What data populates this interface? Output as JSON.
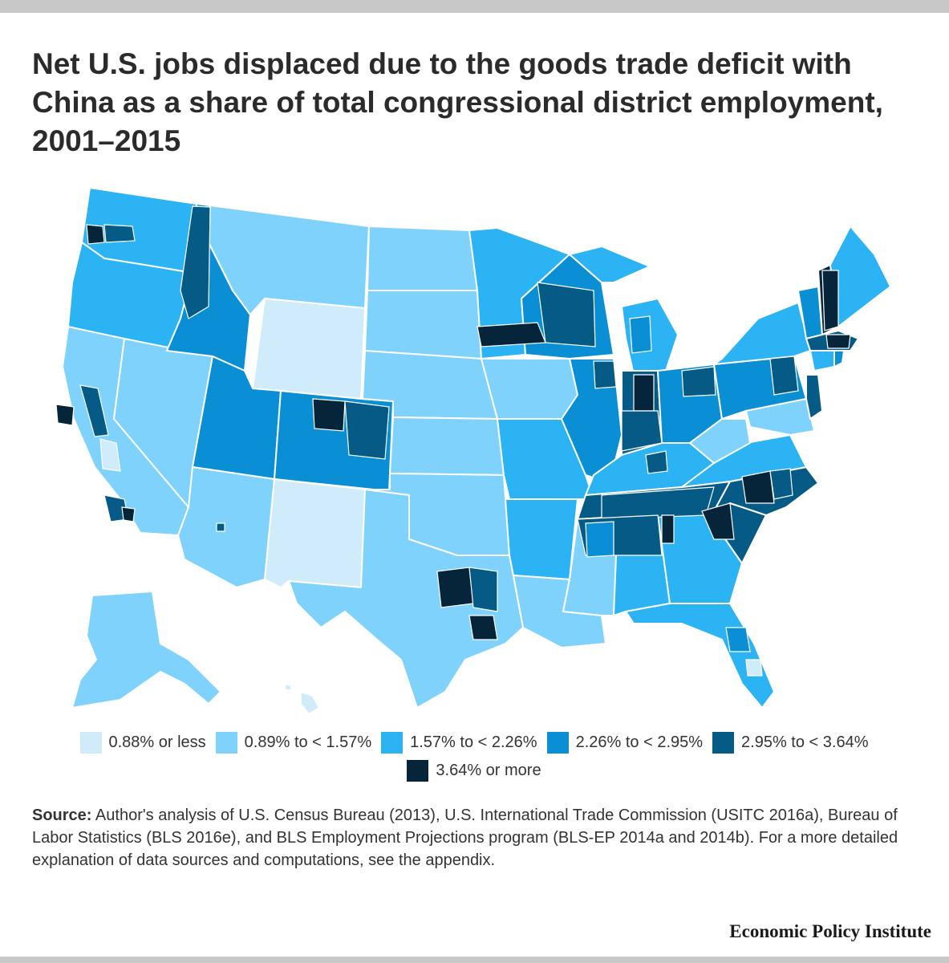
{
  "header": {
    "title": "Net U.S. jobs displaced due to the goods trade deficit with China as a share of total congressional district employment, 2001–2015"
  },
  "legend": {
    "items": [
      {
        "label": "0.88% or less",
        "color": "#d0ecfa"
      },
      {
        "label": "0.89% to < 1.57%",
        "color": "#7fd2fb"
      },
      {
        "label": "1.57% to < 2.26%",
        "color": "#2bb3f3"
      },
      {
        "label": "2.26% to < 2.95%",
        "color": "#0b8fd4"
      },
      {
        "label": "2.95% to < 3.64%",
        "color": "#065a86"
      },
      {
        "label": "3.64% or more",
        "color": "#06243a"
      }
    ]
  },
  "source": {
    "label": "Source:",
    "text": " Author's analysis of U.S. Census Bureau (2013), U.S. International Trade Commission (USITC 2016a), Bureau of Labor Statistics (BLS 2016e), and BLS Employment Projections program (BLS-EP 2014a and 2014b). For a more detailed explanation of data sources and computations, see the appendix."
  },
  "footer": {
    "publisher": "Economic Policy Institute"
  }
}
